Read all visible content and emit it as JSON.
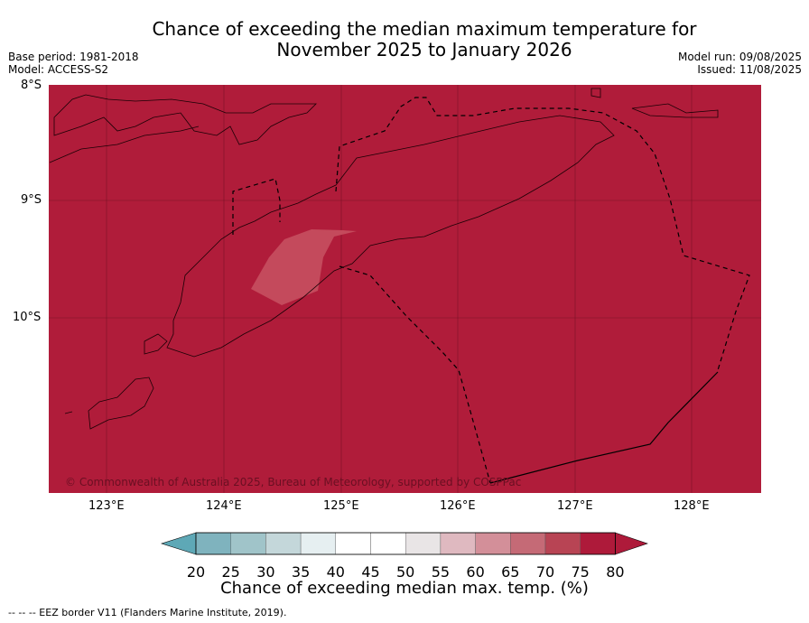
{
  "title": {
    "line1": "Chance of exceeding the median maximum temperature for",
    "line2": "November 2025 to January 2026"
  },
  "meta": {
    "base_period": "Base period: 1981-2018",
    "model": "Model: ACCESS-S2",
    "model_run": "Model run: 09/08/2025",
    "issued": "Issued: 11/08/2025"
  },
  "map": {
    "lat_ticks": [
      "8°S",
      "9°S",
      "10°S"
    ],
    "lon_ticks": [
      "123°E",
      "124°E",
      "125°E",
      "126°E",
      "127°E",
      "128°E"
    ],
    "copyright": "© Commonwealth of Australia 2025, Bureau of Meteorology, supported by COSPPac",
    "background_color": "#b01c3a"
  },
  "colorbar": {
    "ticks": [
      "20",
      "25",
      "30",
      "35",
      "40",
      "45",
      "50",
      "55",
      "60",
      "65",
      "70",
      "75",
      "80"
    ],
    "colors": [
      "#5ea8b6",
      "#7fb3be",
      "#a0c4c9",
      "#c4d7da",
      "#e6eff1",
      "#ffffff",
      "#ffffff",
      "#e9e5e6",
      "#dfb9c0",
      "#d38f99",
      "#c56a76",
      "#b84454",
      "#ae1a3a"
    ],
    "title": "Chance of exceeding median max. temp. (%)"
  },
  "footer": "--  --  -- EEZ border V11 (Flanders Marine Institute, 2019)."
}
